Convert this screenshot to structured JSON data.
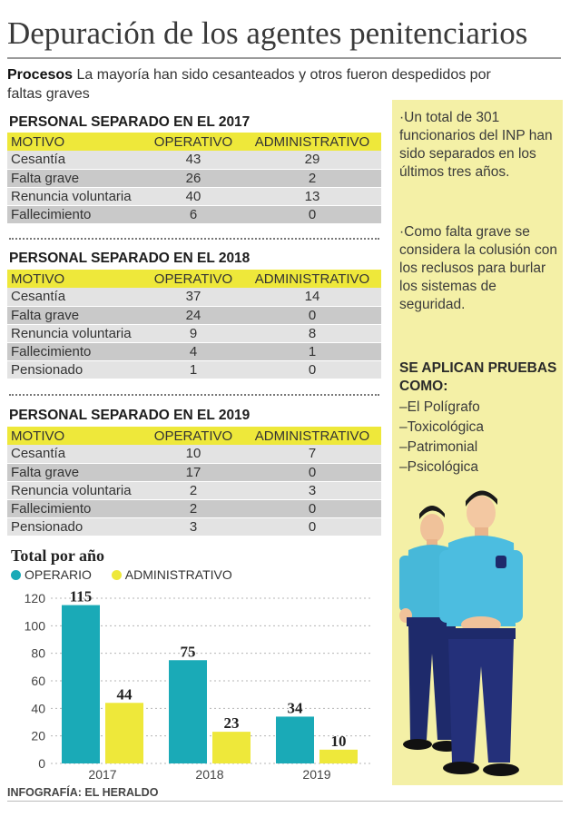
{
  "title": "Depuración de los agentes penitenciarios",
  "intro": {
    "label": "Procesos",
    "text": "La mayoría han sido cesanteados y otros fueron despedidos por faltas graves"
  },
  "sidebar": {
    "p1": "·Un total de 301 funcionarios del INP han sido separados en los últimos tres años.",
    "p2": "·Como falta grave se considera la colusión con los reclusos para burlar los sistemas de seguridad.",
    "heading": "SE APLICAN PRUEBAS COMO:",
    "items": [
      "–El Polígrafo",
      "–Toxicológica",
      "–Patrimonial",
      "–Psicológica"
    ]
  },
  "tables": [
    {
      "title": "PERSONAL SEPARADO EN EL 2017",
      "headers": [
        "MOTIVO",
        "OPERATIVO",
        "ADMINISTRATIVO"
      ],
      "rows": [
        [
          "Cesantía",
          "43",
          "29"
        ],
        [
          "Falta grave",
          "26",
          "2"
        ],
        [
          "Renuncia voluntaria",
          "40",
          "13"
        ],
        [
          "Fallecimiento",
          "6",
          "0"
        ]
      ]
    },
    {
      "title": "PERSONAL SEPARADO EN EL 2018",
      "headers": [
        "MOTIVO",
        "OPERATIVO",
        "ADMINISTRATIVO"
      ],
      "rows": [
        [
          "Cesantía",
          "37",
          "14"
        ],
        [
          "Falta grave",
          "24",
          "0"
        ],
        [
          "Renuncia voluntaria",
          "9",
          "8"
        ],
        [
          "Fallecimiento",
          "4",
          "1"
        ],
        [
          "Pensionado",
          "1",
          "0"
        ]
      ]
    },
    {
      "title": "PERSONAL SEPARADO EN EL 2019",
      "headers": [
        "MOTIVO",
        "OPERATIVO",
        "ADMINISTRATIVO"
      ],
      "rows": [
        [
          "Cesantía",
          "10",
          "7"
        ],
        [
          "Falta grave",
          "17",
          "0"
        ],
        [
          "Renuncia voluntaria",
          "2",
          "3"
        ],
        [
          "Fallecimiento",
          "2",
          "0"
        ],
        [
          "Pensionado",
          "3",
          "0"
        ]
      ]
    }
  ],
  "chart_data": {
    "type": "bar",
    "title": "Total por año",
    "categories": [
      "2017",
      "2018",
      "2019"
    ],
    "series": [
      {
        "name": "OPERARIO",
        "values": [
          115,
          75,
          34
        ],
        "color": "#1aaab7"
      },
      {
        "name": "ADMINISTRATIVO",
        "values": [
          44,
          23,
          10
        ],
        "color": "#eee83a"
      }
    ],
    "ylim": [
      0,
      120
    ],
    "yticks": [
      0,
      20,
      40,
      60,
      80,
      100,
      120
    ],
    "xlabel": "",
    "ylabel": ""
  },
  "credit": "INFOGRAFÍA: EL HERALDO"
}
